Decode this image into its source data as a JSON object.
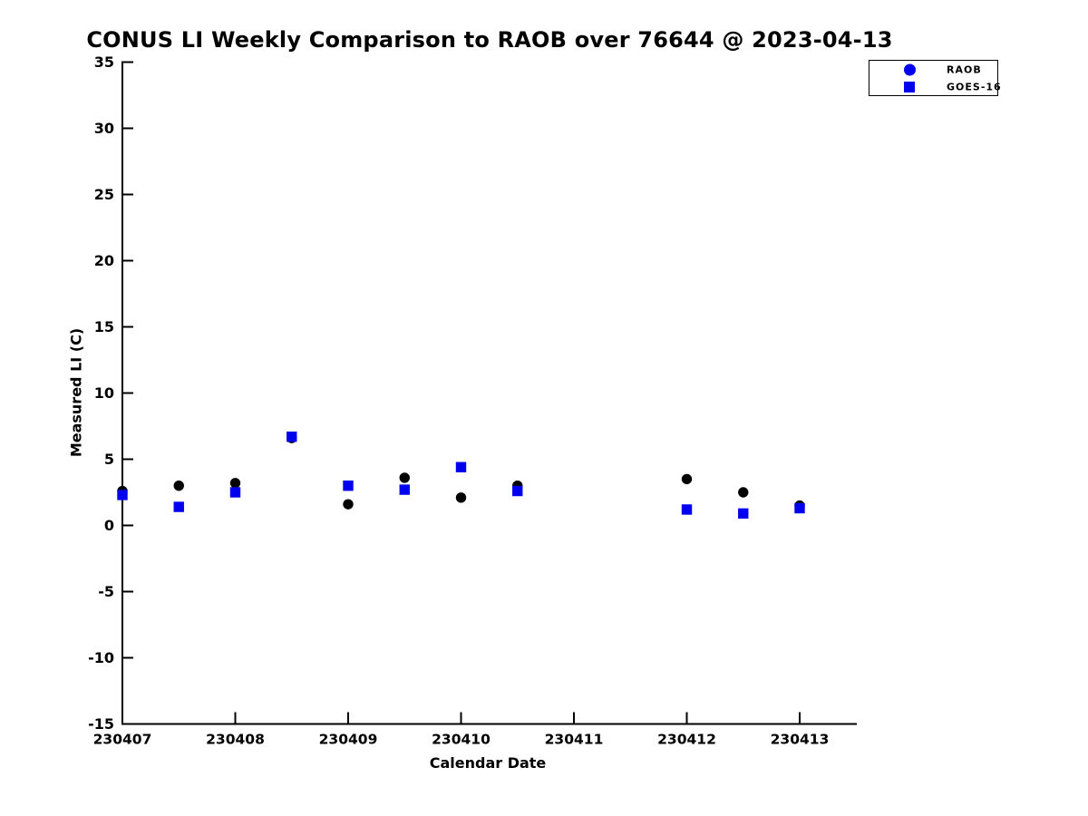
{
  "figure": {
    "title": "CONUS LI Weekly Comparison to RAOB over 76644 @ 2023-04-13"
  },
  "chart_data": {
    "type": "scatter",
    "title": "CONUS LI Weekly Comparison to RAOB over 76644 @ 2023-04-13",
    "xlabel": "Calendar Date",
    "ylabel": "Measured LI (C)",
    "x_tick_labels": [
      "230407",
      "230408",
      "230409",
      "230410",
      "230411",
      "230412",
      "230413"
    ],
    "x_unit": "days since 230407; points at 0.5 are 12Z soundings",
    "ylim": [
      -15,
      35
    ],
    "y_ticks": [
      35,
      30,
      25,
      20,
      15,
      10,
      5,
      0,
      -5,
      -10,
      -15
    ],
    "grid": false,
    "legend": {
      "position": "upper right",
      "entries": [
        {
          "label": "RAOB",
          "marker": "circle",
          "color": "#0000ee"
        },
        {
          "label": "GOES-16",
          "marker": "square",
          "color": "#0000ee"
        }
      ]
    },
    "series": [
      {
        "name": "RAOB",
        "marker": "circle",
        "color": "#000000",
        "points": [
          {
            "x": 0.0,
            "y": 2.6
          },
          {
            "x": 0.5,
            "y": 3.0
          },
          {
            "x": 1.0,
            "y": 3.2
          },
          {
            "x": 1.5,
            "y": 6.6
          },
          {
            "x": 2.0,
            "y": 1.6
          },
          {
            "x": 2.5,
            "y": 3.6
          },
          {
            "x": 3.0,
            "y": 2.1
          },
          {
            "x": 3.5,
            "y": 3.0
          },
          {
            "x": 5.0,
            "y": 3.5
          },
          {
            "x": 5.5,
            "y": 2.5
          },
          {
            "x": 6.0,
            "y": 1.5
          }
        ]
      },
      {
        "name": "GOES-16",
        "marker": "square",
        "color": "#0000ee",
        "points": [
          {
            "x": 0.0,
            "y": 2.3
          },
          {
            "x": 0.5,
            "y": 1.4
          },
          {
            "x": 1.0,
            "y": 2.5
          },
          {
            "x": 1.5,
            "y": 6.7
          },
          {
            "x": 2.0,
            "y": 3.0
          },
          {
            "x": 2.5,
            "y": 2.7
          },
          {
            "x": 3.0,
            "y": 4.4
          },
          {
            "x": 3.5,
            "y": 2.6
          },
          {
            "x": 5.0,
            "y": 1.2
          },
          {
            "x": 5.5,
            "y": 0.9
          },
          {
            "x": 6.0,
            "y": 1.3
          }
        ]
      }
    ]
  }
}
